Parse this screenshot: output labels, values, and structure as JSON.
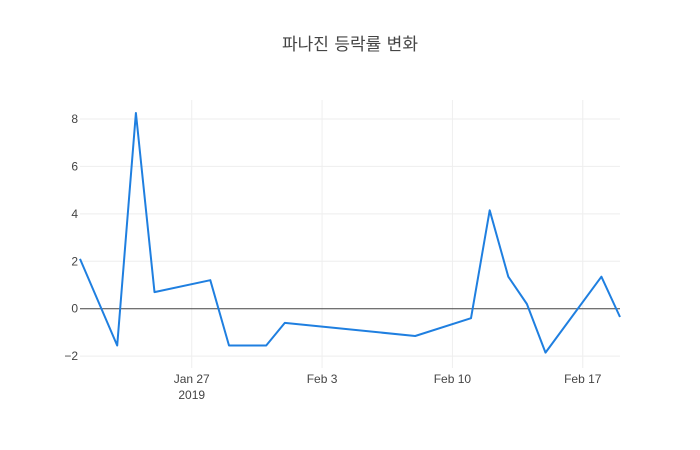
{
  "chart_data": {
    "type": "line",
    "title": "파나진 등락률 변화",
    "xlabel": "",
    "ylabel": "",
    "x": [
      "2019-01-21",
      "2019-01-23",
      "2019-01-24",
      "2019-01-25",
      "2019-01-28",
      "2019-01-29",
      "2019-01-31",
      "2019-02-01",
      "2019-02-08",
      "2019-02-11",
      "2019-02-12",
      "2019-02-13",
      "2019-02-14",
      "2019-02-15",
      "2019-02-18",
      "2019-02-19"
    ],
    "y": [
      2.1,
      -1.55,
      8.25,
      0.7,
      1.2,
      -1.55,
      -1.55,
      -0.6,
      -1.15,
      -0.4,
      4.15,
      1.35,
      0.2,
      -1.85,
      1.35,
      -0.35
    ],
    "x_range": [
      "2019-01-21",
      "2019-02-19"
    ],
    "ylim": [
      -2.5,
      8.8
    ],
    "x_ticks": [
      {
        "date": "2019-01-27",
        "label": "Jan 27",
        "sublabel": "2019"
      },
      {
        "date": "2019-02-03",
        "label": "Feb 3",
        "sublabel": ""
      },
      {
        "date": "2019-02-10",
        "label": "Feb 10",
        "sublabel": ""
      },
      {
        "date": "2019-02-17",
        "label": "Feb 17",
        "sublabel": ""
      }
    ],
    "y_ticks": [
      -2,
      0,
      2,
      4,
      6,
      8
    ],
    "y_tick_labels": [
      "−2",
      "0",
      "2",
      "4",
      "6",
      "8"
    ],
    "grid": true,
    "zero_line": true,
    "line_color": "#1f7fe0",
    "grid_color": "#eeeeee",
    "zero_line_color": "#444444"
  }
}
